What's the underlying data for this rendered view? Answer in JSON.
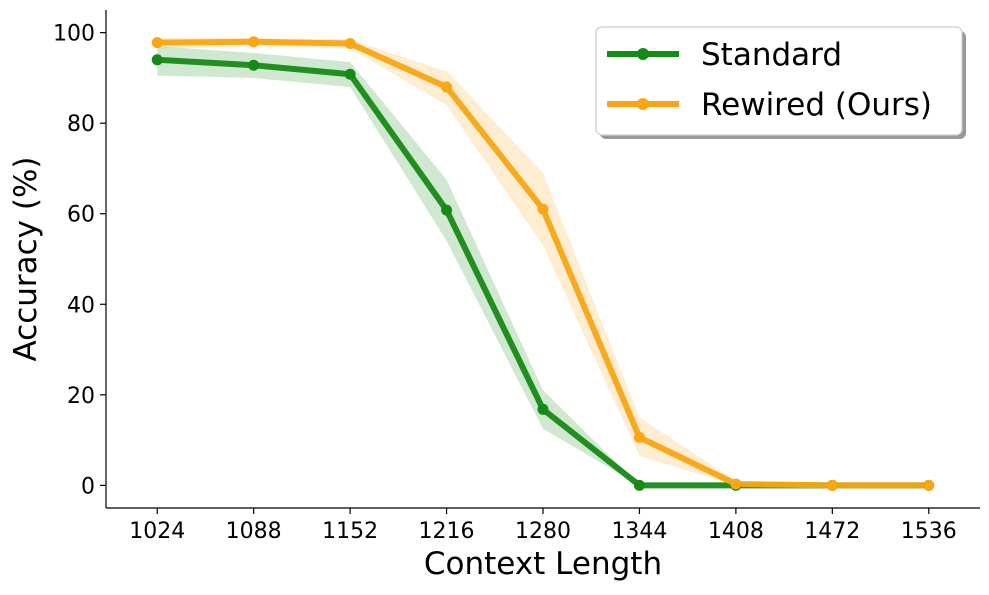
{
  "chart_data": {
    "type": "line",
    "title": "",
    "xlabel": "Context Length",
    "ylabel": "Accuracy (%)",
    "x": [
      1024,
      1088,
      1152,
      1216,
      1280,
      1344,
      1408,
      1472,
      1536
    ],
    "xlim": [
      990,
      1570
    ],
    "ylim": [
      -5,
      105
    ],
    "yticks": [
      0,
      20,
      40,
      60,
      80,
      100
    ],
    "grid": false,
    "legend_position": "top-right",
    "series": [
      {
        "name": "Standard",
        "color": "#168a16",
        "values": [
          94,
          92.8,
          90.8,
          60.8,
          16.8,
          0,
          0,
          0,
          0
        ],
        "lower": [
          90.5,
          90,
          88,
          54,
          12.5,
          0,
          0,
          0,
          0
        ],
        "upper": [
          97,
          95.5,
          93.5,
          67.5,
          21,
          0,
          0,
          0,
          0
        ]
      },
      {
        "name": "Rewired (Ours)",
        "color": "#f8a614",
        "values": [
          97.8,
          98,
          97.6,
          88,
          61,
          10.6,
          0.3,
          0,
          0
        ],
        "lower": [
          96.5,
          97,
          96.5,
          84,
          53,
          6.5,
          0,
          0,
          0
        ],
        "upper": [
          98.8,
          98.8,
          98.5,
          91.5,
          69,
          15,
          1,
          0,
          0
        ]
      }
    ]
  }
}
